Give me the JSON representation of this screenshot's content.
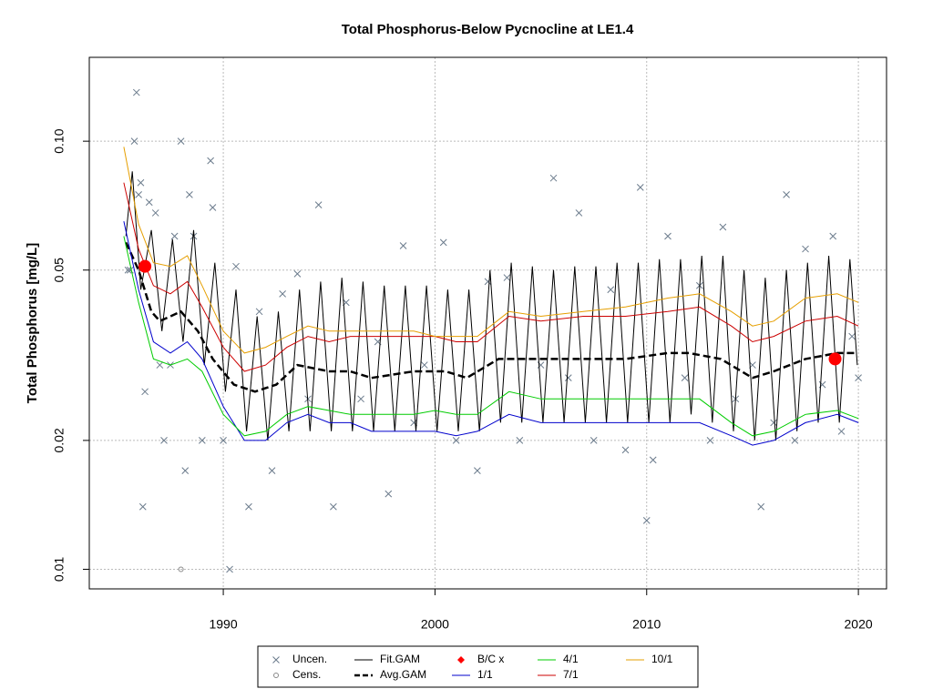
{
  "chart_data": {
    "type": "line",
    "title": "Total Phosphorus-Below Pycnocline at LE1.4",
    "y_label": "Total Phosphorus [mg/L]",
    "log_y": true,
    "grid": true,
    "legend": "bottom",
    "xlim": [
      1983.67,
      2021.33
    ],
    "xticks": [
      1990,
      2000,
      2010,
      2020
    ],
    "ylim": [
      0.009,
      0.157
    ],
    "yticks": [
      0.01,
      0.02,
      0.05,
      {
        "value": 0.1,
        "label": "0.10"
      }
    ],
    "series": [
      {
        "name": "Uncen.",
        "type": "scatter",
        "marker": "x",
        "color": "#6b7b8c",
        "x": [
          1985.5,
          1985.6,
          1985.8,
          1985.9,
          1986,
          1986.1,
          1986.2,
          1986.3,
          1986.5,
          1986.8,
          1987,
          1987.2,
          1987.5,
          1987.7,
          1988,
          1988.2,
          1988.4,
          1988.6,
          1989,
          1989.4,
          1989.5,
          1990,
          1990.3,
          1990.6,
          1991.2,
          1991.7,
          1992.3,
          1992.8,
          1993.5,
          1994,
          1994.5,
          1995.2,
          1995.8,
          1996.5,
          1997.3,
          1997.8,
          1998.5,
          1999,
          1999.5,
          2000.4,
          2001,
          2002,
          2002.5,
          2003.4,
          2004,
          2005,
          2005.6,
          2006.3,
          2006.8,
          2007.5,
          2008.3,
          2009,
          2009.7,
          2010,
          2010.3,
          2011,
          2011.8,
          2012.5,
          2013,
          2013.6,
          2014.2,
          2015,
          2015.4,
          2016,
          2016.6,
          2017,
          2017.5,
          2018.3,
          2018.8,
          2019.2,
          2019.7,
          2020
        ],
        "values": [
          0.05,
          0.05,
          0.1,
          0.13,
          0.075,
          0.08,
          0.014,
          0.026,
          0.072,
          0.068,
          0.03,
          0.02,
          0.03,
          0.06,
          0.1,
          0.017,
          0.075,
          0.06,
          0.02,
          0.09,
          0.07,
          0.02,
          0.01,
          0.051,
          0.014,
          0.04,
          0.017,
          0.044,
          0.049,
          0.025,
          0.071,
          0.014,
          0.042,
          0.025,
          0.034,
          0.015,
          0.057,
          0.022,
          0.03,
          0.058,
          0.02,
          0.017,
          0.047,
          0.048,
          0.02,
          0.03,
          0.082,
          0.028,
          0.068,
          0.02,
          0.045,
          0.019,
          0.078,
          0.013,
          0.018,
          0.06,
          0.028,
          0.046,
          0.02,
          0.063,
          0.025,
          0.03,
          0.014,
          0.022,
          0.075,
          0.02,
          0.056,
          0.027,
          0.06,
          0.021,
          0.035,
          0.028
        ]
      },
      {
        "name": "Cens.",
        "type": "scatter",
        "marker": "circle",
        "color": "#888888",
        "x": [
          1988
        ],
        "values": [
          0.01
        ]
      },
      {
        "name": "Fit.GAM",
        "type": "line",
        "color": "#000000",
        "width": 1,
        "x": [
          1985.4,
          1985.7,
          1986.1,
          1986.6,
          1987.1,
          1987.6,
          1988.1,
          1988.6,
          1989.1,
          1989.6,
          1990.1,
          1990.6,
          1991.1,
          1991.6,
          1992.1,
          1992.6,
          1993.1,
          1993.6,
          1994.1,
          1994.6,
          1995.1,
          1995.6,
          1996.1,
          1996.6,
          1997.1,
          1997.6,
          1998.1,
          1998.6,
          1999.1,
          1999.6,
          2000.1,
          2000.6,
          2001.1,
          2001.6,
          2002.1,
          2002.6,
          2003.1,
          2003.6,
          2004.1,
          2004.6,
          2005.1,
          2005.6,
          2006.1,
          2006.6,
          2007.1,
          2007.6,
          2008.1,
          2008.6,
          2009.1,
          2009.6,
          2010.1,
          2010.6,
          2011.1,
          2011.6,
          2012.1,
          2012.6,
          2013.1,
          2013.6,
          2014.1,
          2014.6,
          2015.1,
          2015.6,
          2016.1,
          2016.6,
          2017.1,
          2017.6,
          2018.1,
          2018.6,
          2019.1,
          2019.6,
          2019.95
        ],
        "values": [
          0.06,
          0.085,
          0.045,
          0.062,
          0.036,
          0.059,
          0.034,
          0.062,
          0.03,
          0.052,
          0.026,
          0.045,
          0.021,
          0.039,
          0.02,
          0.04,
          0.021,
          0.045,
          0.021,
          0.047,
          0.021,
          0.048,
          0.021,
          0.047,
          0.021,
          0.046,
          0.021,
          0.046,
          0.021,
          0.046,
          0.021,
          0.045,
          0.021,
          0.045,
          0.021,
          0.05,
          0.022,
          0.052,
          0.022,
          0.051,
          0.022,
          0.05,
          0.022,
          0.051,
          0.022,
          0.051,
          0.022,
          0.052,
          0.022,
          0.052,
          0.022,
          0.053,
          0.022,
          0.053,
          0.023,
          0.054,
          0.022,
          0.054,
          0.021,
          0.05,
          0.02,
          0.048,
          0.02,
          0.05,
          0.021,
          0.052,
          0.022,
          0.054,
          0.022,
          0.053,
          0.03
        ]
      },
      {
        "name": "Avg.GAM",
        "type": "line",
        "color": "#000000",
        "width": 2.5,
        "dash": true,
        "x": [
          1985.4,
          1986,
          1986.6,
          1987,
          1988,
          1988.8,
          1989.5,
          1990.5,
          1991.5,
          1992.5,
          1993.5,
          1995,
          1996,
          1997,
          1999,
          2000.5,
          2001.5,
          2003,
          2005,
          2007,
          2009,
          2011,
          2012,
          2013.5,
          2015,
          2016,
          2017.5,
          2019,
          2019.9
        ],
        "values": [
          0.058,
          0.05,
          0.04,
          0.038,
          0.04,
          0.036,
          0.031,
          0.027,
          0.026,
          0.027,
          0.03,
          0.029,
          0.029,
          0.028,
          0.029,
          0.029,
          0.028,
          0.031,
          0.031,
          0.031,
          0.031,
          0.032,
          0.032,
          0.031,
          0.028,
          0.029,
          0.031,
          0.032,
          0.032
        ]
      },
      {
        "name": "B/C x",
        "type": "scatter",
        "marker": "dot",
        "color": "#ff0000",
        "x": [
          1986.3,
          2018.9
        ],
        "values": [
          0.051,
          0.031
        ]
      },
      {
        "name": "1/1",
        "type": "line",
        "color": "#0000cc",
        "width": 1,
        "x": [
          1985.3,
          1986,
          1986.7,
          1987.5,
          1988.3,
          1989,
          1990,
          1991,
          1992,
          1993,
          1994,
          1995,
          1996,
          1997,
          1999,
          2000,
          2001,
          2002,
          2003.5,
          2005,
          2007,
          2009,
          2011,
          2012.5,
          2014,
          2015,
          2016,
          2017.5,
          2019,
          2020
        ],
        "values": [
          0.065,
          0.045,
          0.034,
          0.032,
          0.034,
          0.031,
          0.024,
          0.02,
          0.02,
          0.022,
          0.023,
          0.022,
          0.022,
          0.021,
          0.021,
          0.021,
          0.0205,
          0.021,
          0.023,
          0.022,
          0.022,
          0.022,
          0.022,
          0.022,
          0.0205,
          0.0195,
          0.02,
          0.022,
          0.023,
          0.022
        ]
      },
      {
        "name": "4/1",
        "type": "line",
        "color": "#00cc00",
        "width": 1,
        "x": [
          1985.3,
          1986,
          1986.7,
          1987.5,
          1988.3,
          1989,
          1990,
          1991,
          1992,
          1993,
          1994,
          1995,
          1996,
          1997,
          1999,
          2000,
          2001,
          2002,
          2003.5,
          2005,
          2007,
          2009,
          2011,
          2012.5,
          2014,
          2015,
          2016,
          2017.5,
          2019,
          2020
        ],
        "values": [
          0.06,
          0.042,
          0.031,
          0.03,
          0.031,
          0.029,
          0.023,
          0.0205,
          0.021,
          0.023,
          0.024,
          0.0235,
          0.023,
          0.023,
          0.023,
          0.0235,
          0.023,
          0.023,
          0.026,
          0.025,
          0.025,
          0.025,
          0.025,
          0.025,
          0.022,
          0.0205,
          0.021,
          0.023,
          0.0235,
          0.0225
        ]
      },
      {
        "name": "7/1",
        "type": "line",
        "color": "#cc0000",
        "width": 1,
        "x": [
          1985.3,
          1986,
          1986.7,
          1987.5,
          1988.3,
          1989,
          1990,
          1991,
          1992,
          1993,
          1994,
          1995,
          1996,
          1997,
          1999,
          2000,
          2001,
          2002,
          2003.5,
          2005,
          2007,
          2009,
          2011,
          2012.5,
          2014,
          2015,
          2016,
          2017.5,
          2019,
          2020
        ],
        "values": [
          0.08,
          0.056,
          0.046,
          0.044,
          0.047,
          0.041,
          0.033,
          0.029,
          0.03,
          0.033,
          0.035,
          0.034,
          0.035,
          0.035,
          0.035,
          0.035,
          0.034,
          0.034,
          0.039,
          0.038,
          0.039,
          0.039,
          0.04,
          0.041,
          0.037,
          0.034,
          0.035,
          0.038,
          0.039,
          0.037
        ]
      },
      {
        "name": "10/1",
        "type": "line",
        "color": "#e69f00",
        "width": 1,
        "x": [
          1985.3,
          1986,
          1986.7,
          1987.5,
          1988.3,
          1989,
          1990,
          1991,
          1992,
          1993,
          1994,
          1995,
          1996,
          1997,
          1999,
          2000,
          2001,
          2002,
          2003.5,
          2005,
          2007,
          2009,
          2011,
          2012.5,
          2014,
          2015,
          2016,
          2017.5,
          2019,
          2020
        ],
        "values": [
          0.097,
          0.064,
          0.052,
          0.051,
          0.054,
          0.046,
          0.036,
          0.032,
          0.033,
          0.035,
          0.037,
          0.036,
          0.036,
          0.036,
          0.036,
          0.035,
          0.035,
          0.035,
          0.04,
          0.039,
          0.04,
          0.041,
          0.043,
          0.044,
          0.04,
          0.037,
          0.038,
          0.043,
          0.044,
          0.042
        ]
      }
    ]
  }
}
